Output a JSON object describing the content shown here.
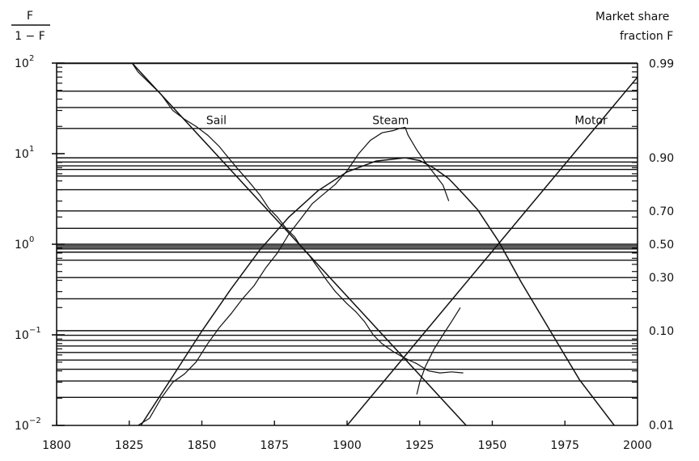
{
  "chart_data": {
    "type": "line",
    "title": "",
    "left_axis_label": {
      "num": "F",
      "den": "1 − F"
    },
    "right_axis_label": [
      "Market share",
      "fraction F"
    ],
    "left_ticks": [
      {
        "base": "10",
        "exp": "2",
        "value": 100
      },
      {
        "base": "10",
        "exp": "1",
        "value": 10
      },
      {
        "base": "10",
        "exp": "0",
        "value": 1
      },
      {
        "base": "10",
        "exp": "−1",
        "value": 0.1
      },
      {
        "base": "10",
        "exp": "−2",
        "value": 0.01
      }
    ],
    "right_ticks": [
      {
        "label": "0.99",
        "F": 0.99
      },
      {
        "label": "0.90",
        "F": 0.9
      },
      {
        "label": "0.70",
        "F": 0.7
      },
      {
        "label": "0.50",
        "F": 0.5
      },
      {
        "label": "0.30",
        "F": 0.3
      },
      {
        "label": "0.10",
        "F": 0.1
      },
      {
        "label": "0.01",
        "F": 0.01
      }
    ],
    "x_ticks": [
      "1800",
      "1825",
      "1850",
      "1875",
      "1900",
      "1925",
      "1950",
      "1975",
      "2000"
    ],
    "xlim": [
      1800,
      2000
    ],
    "ylim": [
      0.01,
      100
    ],
    "y_scale": "log",
    "grid_fractions": [
      0.99,
      0.98,
      0.97,
      0.95,
      0.9,
      0.89,
      0.88,
      0.87,
      0.85,
      0.8,
      0.7,
      0.6,
      0.5,
      0.49,
      0.48,
      0.47,
      0.45,
      0.4,
      0.3,
      0.2,
      0.1,
      0.09,
      0.08,
      0.07,
      0.06,
      0.05,
      0.04,
      0.03,
      0.02
    ],
    "series": [
      {
        "name": "Sail",
        "fitted": [
          [
            1826,
            100
          ],
          [
            1941,
            0.01
          ]
        ],
        "observed": [
          [
            1826,
            100
          ],
          [
            1828,
            80
          ],
          [
            1832,
            60
          ],
          [
            1836,
            45
          ],
          [
            1840,
            30
          ],
          [
            1844,
            24
          ],
          [
            1848,
            20
          ],
          [
            1852,
            16
          ],
          [
            1856,
            12
          ],
          [
            1858,
            10
          ],
          [
            1862,
            7
          ],
          [
            1866,
            5
          ],
          [
            1870,
            3.5
          ],
          [
            1873,
            2.5
          ],
          [
            1876,
            2
          ],
          [
            1879,
            1.5
          ],
          [
            1882,
            1.2
          ],
          [
            1884,
            0.95
          ],
          [
            1887,
            0.75
          ],
          [
            1890,
            0.55
          ],
          [
            1893,
            0.4
          ],
          [
            1896,
            0.3
          ],
          [
            1900,
            0.22
          ],
          [
            1903,
            0.18
          ],
          [
            1906,
            0.14
          ],
          [
            1909,
            0.1
          ],
          [
            1912,
            0.08
          ],
          [
            1916,
            0.065
          ],
          [
            1920,
            0.055
          ],
          [
            1924,
            0.048
          ],
          [
            1928,
            0.04
          ],
          [
            1932,
            0.038
          ],
          [
            1936,
            0.039
          ],
          [
            1940,
            0.038
          ]
        ]
      },
      {
        "name": "Steam",
        "fitted": [
          [
            1829,
            0.01
          ],
          [
            1840,
            0.035
          ],
          [
            1850,
            0.11
          ],
          [
            1860,
            0.32
          ],
          [
            1870,
            0.87
          ],
          [
            1880,
            2.0
          ],
          [
            1890,
            3.9
          ],
          [
            1900,
            6.3
          ],
          [
            1910,
            8.3
          ],
          [
            1920,
            9.0
          ],
          [
            1925,
            8.4
          ],
          [
            1930,
            6.9
          ],
          [
            1935,
            5.3
          ],
          [
            1940,
            3.6
          ],
          [
            1945,
            2.4
          ],
          [
            1952,
            1.1
          ],
          [
            1960,
            0.38
          ],
          [
            1970,
            0.11
          ],
          [
            1980,
            0.032
          ],
          [
            1992,
            0.01
          ]
        ],
        "observed": [
          [
            1828,
            0.01
          ],
          [
            1832,
            0.012
          ],
          [
            1836,
            0.02
          ],
          [
            1840,
            0.03
          ],
          [
            1844,
            0.037
          ],
          [
            1848,
            0.05
          ],
          [
            1852,
            0.08
          ],
          [
            1856,
            0.12
          ],
          [
            1860,
            0.17
          ],
          [
            1864,
            0.25
          ],
          [
            1868,
            0.35
          ],
          [
            1872,
            0.55
          ],
          [
            1876,
            0.8
          ],
          [
            1880,
            1.3
          ],
          [
            1884,
            1.9
          ],
          [
            1888,
            2.8
          ],
          [
            1892,
            3.6
          ],
          [
            1896,
            4.6
          ],
          [
            1900,
            6.5
          ],
          [
            1904,
            10
          ],
          [
            1908,
            14
          ],
          [
            1912,
            17
          ],
          [
            1916,
            18
          ],
          [
            1918,
            19
          ],
          [
            1920,
            19.5
          ],
          [
            1921,
            16
          ],
          [
            1924,
            11
          ],
          [
            1927,
            8
          ],
          [
            1930,
            6
          ],
          [
            1933,
            4.5
          ],
          [
            1935,
            3
          ]
        ]
      },
      {
        "name": "Motor",
        "fitted": [
          [
            1900,
            0.01
          ],
          [
            2000,
            70
          ]
        ],
        "observed": [
          [
            1924,
            0.022
          ],
          [
            1925,
            0.03
          ],
          [
            1927,
            0.045
          ],
          [
            1930,
            0.07
          ],
          [
            1933,
            0.1
          ],
          [
            1936,
            0.14
          ],
          [
            1939,
            0.2
          ]
        ]
      }
    ],
    "series_labels": [
      {
        "text": "Sail",
        "at": [
          1855,
          18
        ]
      },
      {
        "text": "Steam",
        "at": [
          1915,
          18
        ]
      },
      {
        "text": "Motor",
        "at": [
          1984,
          18
        ]
      }
    ]
  }
}
